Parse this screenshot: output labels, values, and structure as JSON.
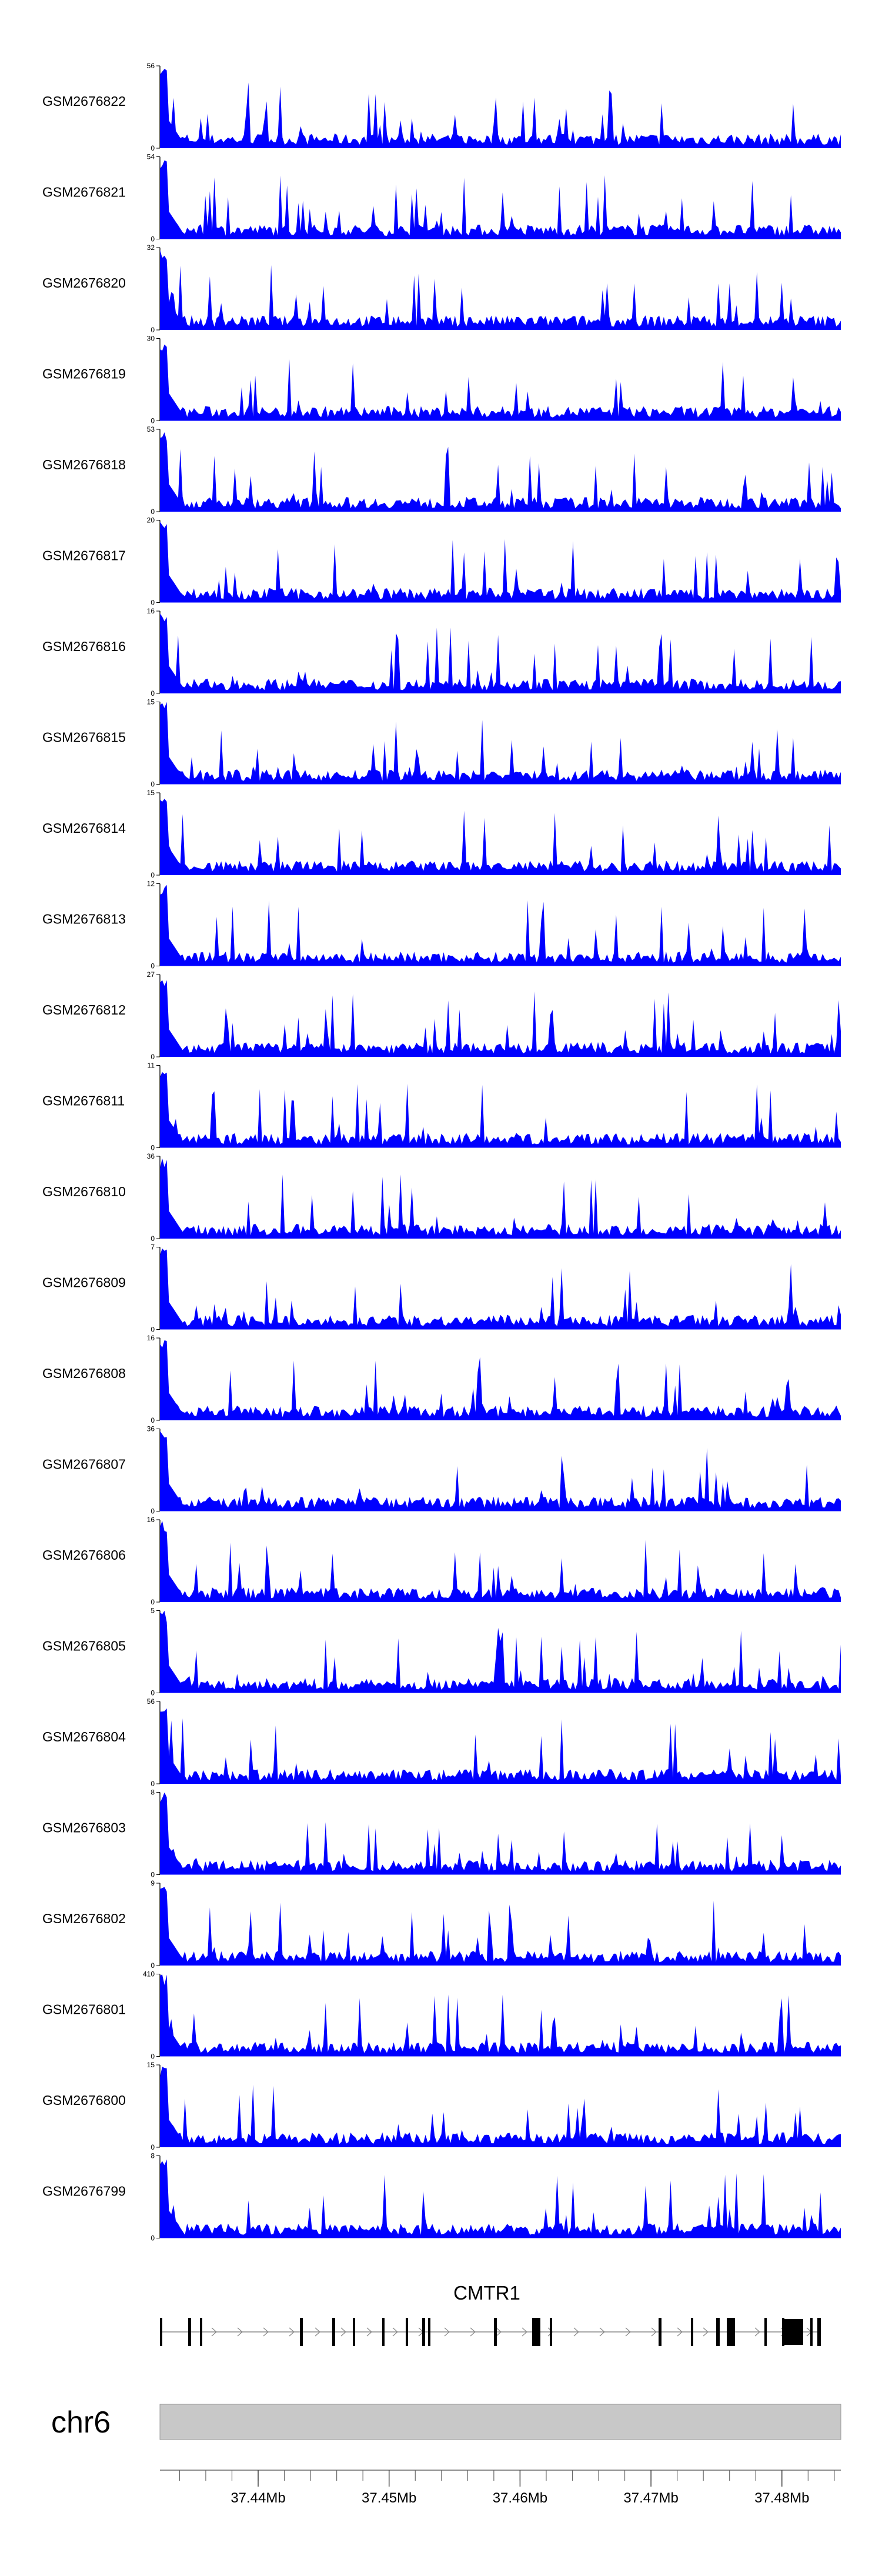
{
  "chart_data": {
    "type": "area",
    "fill_color": "#0000ff",
    "gene_color": "#000000",
    "ideogram_color": "#c8c8c8",
    "tracks": [
      {
        "name": "GSM2676822",
        "ymax": 56,
        "ymin": 0
      },
      {
        "name": "GSM2676821",
        "ymax": 54,
        "ymin": 0
      },
      {
        "name": "GSM2676820",
        "ymax": 32,
        "ymin": 0
      },
      {
        "name": "GSM2676819",
        "ymax": 30,
        "ymin": 0
      },
      {
        "name": "GSM2676818",
        "ymax": 53,
        "ymin": 0
      },
      {
        "name": "GSM2676817",
        "ymax": 20,
        "ymin": 0
      },
      {
        "name": "GSM2676816",
        "ymax": 16,
        "ymin": 0
      },
      {
        "name": "GSM2676815",
        "ymax": 15,
        "ymin": 0
      },
      {
        "name": "GSM2676814",
        "ymax": 15,
        "ymin": 0
      },
      {
        "name": "GSM2676813",
        "ymax": 12,
        "ymin": 0
      },
      {
        "name": "GSM2676812",
        "ymax": 27,
        "ymin": 0
      },
      {
        "name": "GSM2676811",
        "ymax": 11,
        "ymin": 0
      },
      {
        "name": "GSM2676810",
        "ymax": 36,
        "ymin": 0
      },
      {
        "name": "GSM2676809",
        "ymax": 7,
        "ymin": 0
      },
      {
        "name": "GSM2676808",
        "ymax": 16,
        "ymin": 0
      },
      {
        "name": "GSM2676807",
        "ymax": 36,
        "ymin": 0
      },
      {
        "name": "GSM2676806",
        "ymax": 16,
        "ymin": 0
      },
      {
        "name": "GSM2676805",
        "ymax": 5,
        "ymin": 0
      },
      {
        "name": "GSM2676804",
        "ymax": 56,
        "ymin": 0
      },
      {
        "name": "GSM2676803",
        "ymax": 8,
        "ymin": 0
      },
      {
        "name": "GSM2676802",
        "ymax": 9,
        "ymin": 0
      },
      {
        "name": "GSM2676801",
        "ymax": 410,
        "ymin": 0
      },
      {
        "name": "GSM2676800",
        "ymax": 15,
        "ymin": 0
      },
      {
        "name": "GSM2676799",
        "ymax": 8,
        "ymin": 0
      }
    ],
    "gene": {
      "name": "CMTR1",
      "strand": "+"
    },
    "chromosome": "chr6",
    "x_axis": {
      "ticks": [
        "37.44Mb",
        "37.45Mb",
        "37.46Mb",
        "37.47Mb",
        "37.48Mb"
      ],
      "tick_values": [
        37.44,
        37.45,
        37.46,
        37.47,
        37.48
      ],
      "range": [
        37.4325,
        37.4845
      ],
      "minor_step": 0.002
    }
  }
}
